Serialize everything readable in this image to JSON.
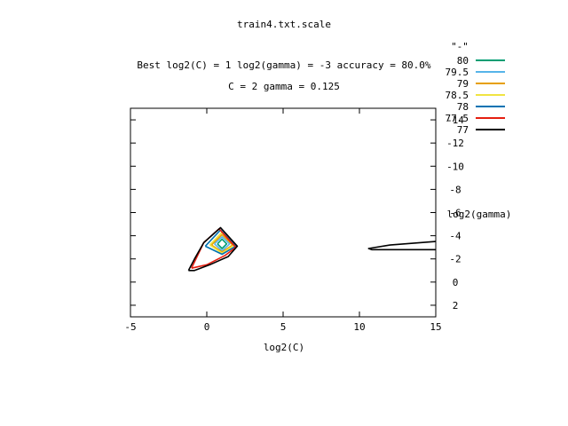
{
  "chart_data": {
    "type": "contour",
    "title": "train4.txt.scale",
    "subtitle_line1": "Best log2(C) = 1  log2(gamma) = -3  accuracy = 80.0%",
    "subtitle_line2": "C = 2  gamma = 0.125",
    "xlabel": "log2(C)",
    "ylabel": "log2(gamma)",
    "xlim": [
      -5,
      15
    ],
    "ylim": [
      3,
      -15
    ],
    "xticks": [
      "-5",
      "0",
      "5",
      "10",
      "15"
    ],
    "yticks": [
      "-14",
      "-12",
      "-10",
      "-8",
      "-6",
      "-4",
      "-2",
      "0",
      "2"
    ],
    "legend_title": "\"-\"",
    "legend_position": "top-right",
    "grid": false,
    "series": [
      {
        "name": "80",
        "color": "#009e73",
        "paths": [
          [
            [
              0.7,
              -3.3
            ],
            [
              1.0,
              -3.7
            ],
            [
              1.3,
              -3.3
            ],
            [
              1.0,
              -2.9
            ],
            [
              0.7,
              -3.3
            ]
          ]
        ]
      },
      {
        "name": "79.5",
        "color": "#56b4e9",
        "paths": [
          [
            [
              0.5,
              -3.3
            ],
            [
              1.0,
              -3.9
            ],
            [
              1.5,
              -3.3
            ],
            [
              1.0,
              -2.7
            ],
            [
              0.5,
              -3.3
            ]
          ]
        ]
      },
      {
        "name": "79",
        "color": "#e69f00",
        "paths": [
          [
            [
              0.3,
              -3.2
            ],
            [
              1.0,
              -4.1
            ],
            [
              1.7,
              -3.2
            ],
            [
              1.0,
              -2.6
            ],
            [
              0.3,
              -3.2
            ]
          ]
        ]
      },
      {
        "name": "78.5",
        "color": "#f0e442",
        "paths": [
          [
            [
              0.2,
              -3.2
            ],
            [
              1.0,
              -4.3
            ],
            [
              1.8,
              -3.2
            ],
            [
              1.0,
              -2.5
            ],
            [
              0.2,
              -3.2
            ]
          ]
        ]
      },
      {
        "name": "78",
        "color": "#0072b2",
        "paths": [
          [
            [
              -0.1,
              -3.1
            ],
            [
              0.9,
              -4.5
            ],
            [
              1.9,
              -3.1
            ],
            [
              1.0,
              -2.4
            ],
            [
              -0.1,
              -3.1
            ]
          ]
        ]
      },
      {
        "name": "77.5",
        "color": "#e51e10",
        "paths": [
          [
            [
              -1.0,
              -1.2
            ],
            [
              -0.2,
              -3.4
            ],
            [
              0.8,
              -4.6
            ],
            [
              1.9,
              -3.0
            ],
            [
              1.2,
              -2.3
            ],
            [
              0.0,
              -1.5
            ],
            [
              -1.0,
              -1.2
            ]
          ]
        ]
      },
      {
        "name": "77",
        "color": "#000000",
        "paths": [
          [
            [
              -1.2,
              -1.0
            ],
            [
              -0.8,
              -2.0
            ],
            [
              -0.2,
              -3.4
            ],
            [
              0.9,
              -4.7
            ],
            [
              2.0,
              -3.1
            ],
            [
              1.4,
              -2.2
            ],
            [
              0.2,
              -1.5
            ],
            [
              -0.8,
              -1.0
            ],
            [
              -1.2,
              -1.0
            ]
          ],
          [
            [
              15.0,
              -3.5
            ],
            [
              12.0,
              -3.2
            ],
            [
              10.6,
              -2.9
            ],
            [
              10.8,
              -2.8
            ],
            [
              15.0,
              -2.8
            ]
          ]
        ]
      }
    ]
  }
}
